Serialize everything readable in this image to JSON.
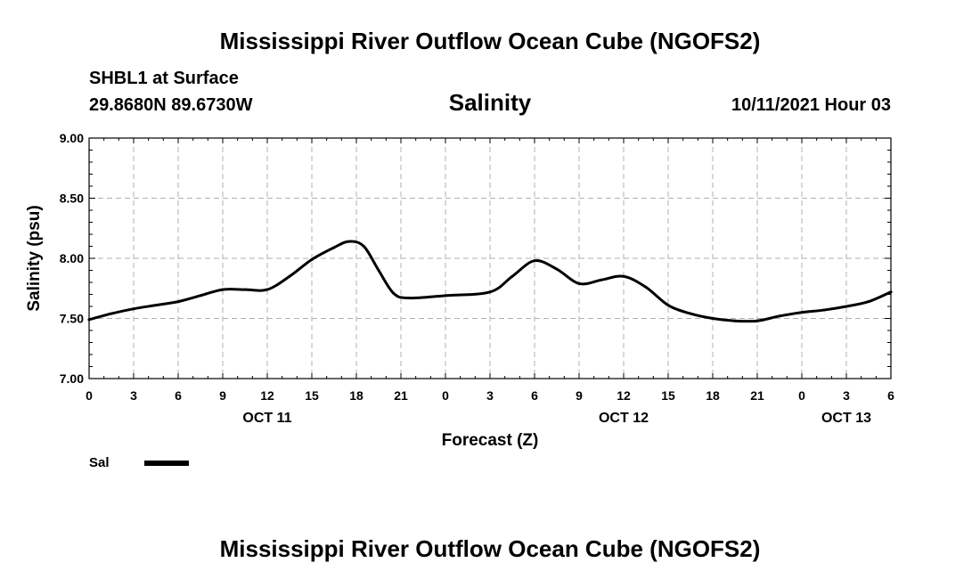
{
  "header": {
    "title": "Mississippi River Outflow Ocean Cube (NGOFS2)",
    "station": "SHBL1 at Surface",
    "coords": "29.8680N  89.6730W",
    "variable": "Salinity",
    "datetime": "10/11/2021 Hour 03"
  },
  "footer": {
    "title": "Mississippi River Outflow Ocean Cube (NGOFS2)"
  },
  "legend": {
    "label": "Sal",
    "color": "#000000"
  },
  "chart_data": {
    "type": "line",
    "title": "Salinity",
    "xlabel": "Forecast (Z)",
    "ylabel": "Salinity (psu)",
    "ylim": [
      7.0,
      9.0
    ],
    "yticks": [
      7.0,
      7.5,
      8.0,
      8.5,
      9.0
    ],
    "ytick_labels": [
      "7.00",
      "7.50",
      "8.00",
      "8.50",
      "9.00"
    ],
    "xlim": [
      0,
      54
    ],
    "xticks": [
      0,
      3,
      6,
      9,
      12,
      15,
      18,
      21,
      24,
      27,
      30,
      33,
      36,
      39,
      42,
      45,
      48,
      51,
      54
    ],
    "xtick_labels": [
      "0",
      "3",
      "6",
      "9",
      "12",
      "15",
      "18",
      "21",
      "0",
      "3",
      "6",
      "9",
      "12",
      "15",
      "18",
      "21",
      "0",
      "3",
      "6"
    ],
    "date_labels": [
      {
        "x": 12,
        "label": "OCT 11"
      },
      {
        "x": 36,
        "label": "OCT 12"
      },
      {
        "x": 51,
        "label": "OCT 13"
      }
    ],
    "grid": true,
    "series": [
      {
        "name": "Sal",
        "x": [
          0,
          1.5,
          3,
          4.5,
          6,
          7.5,
          9,
          10.5,
          12,
          13.5,
          15,
          16.5,
          17.5,
          18.5,
          19.5,
          20.5,
          21.5,
          24,
          27,
          28.5,
          30,
          31.5,
          33,
          34.5,
          36,
          37.5,
          39,
          40.5,
          42,
          43.5,
          45,
          46.5,
          48,
          49.5,
          51,
          52.5,
          54
        ],
        "values": [
          7.49,
          7.54,
          7.58,
          7.61,
          7.64,
          7.69,
          7.74,
          7.74,
          7.74,
          7.85,
          7.99,
          8.09,
          8.14,
          8.1,
          7.9,
          7.71,
          7.67,
          7.69,
          7.72,
          7.85,
          7.98,
          7.91,
          7.79,
          7.82,
          7.85,
          7.76,
          7.61,
          7.54,
          7.5,
          7.48,
          7.48,
          7.52,
          7.55,
          7.57,
          7.6,
          7.64,
          7.72
        ]
      }
    ]
  }
}
